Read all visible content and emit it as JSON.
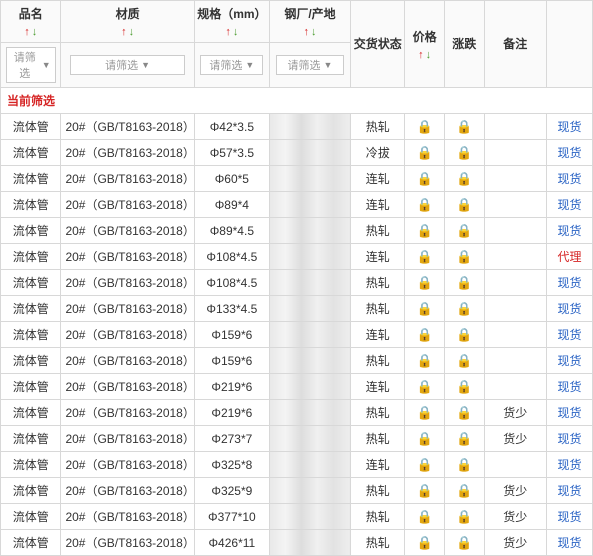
{
  "headers": {
    "name": "品名",
    "material": "材质",
    "spec": "规格（mm）",
    "origin": "钢厂/产地",
    "status": "交货状态",
    "price": "价格",
    "trend": "涨跌",
    "note": "备注",
    "remark": ""
  },
  "filter_placeholder": "请筛选",
  "current_filter_label": "当前筛选",
  "remark_default": "现货",
  "remark_agent": "代理",
  "note_less": "货少",
  "colors": {
    "up": "#d62626",
    "down": "#4b9c2f",
    "link": "#2a63c4",
    "border": "#d8d8d8"
  },
  "rows": [
    {
      "name": "流体管",
      "material": "20#（GB/T8163-2018）",
      "spec": "Φ42*3.5",
      "status": "热轧",
      "note": "",
      "remark": "现货",
      "remark_style": "link"
    },
    {
      "name": "流体管",
      "material": "20#（GB/T8163-2018）",
      "spec": "Φ57*3.5",
      "status": "冷拔",
      "note": "",
      "remark": "现货",
      "remark_style": "link"
    },
    {
      "name": "流体管",
      "material": "20#（GB/T8163-2018）",
      "spec": "Φ60*5",
      "status": "连轧",
      "note": "",
      "remark": "现货",
      "remark_style": "link"
    },
    {
      "name": "流体管",
      "material": "20#（GB/T8163-2018）",
      "spec": "Φ89*4",
      "status": "连轧",
      "note": "",
      "remark": "现货",
      "remark_style": "link"
    },
    {
      "name": "流体管",
      "material": "20#（GB/T8163-2018）",
      "spec": "Φ89*4.5",
      "status": "热轧",
      "note": "",
      "remark": "现货",
      "remark_style": "link"
    },
    {
      "name": "流体管",
      "material": "20#（GB/T8163-2018）",
      "spec": "Φ108*4.5",
      "status": "连轧",
      "note": "",
      "remark": "代理",
      "remark_style": "red"
    },
    {
      "name": "流体管",
      "material": "20#（GB/T8163-2018）",
      "spec": "Φ108*4.5",
      "status": "热轧",
      "note": "",
      "remark": "现货",
      "remark_style": "link"
    },
    {
      "name": "流体管",
      "material": "20#（GB/T8163-2018）",
      "spec": "Φ133*4.5",
      "status": "热轧",
      "note": "",
      "remark": "现货",
      "remark_style": "link"
    },
    {
      "name": "流体管",
      "material": "20#（GB/T8163-2018）",
      "spec": "Φ159*6",
      "status": "连轧",
      "note": "",
      "remark": "现货",
      "remark_style": "link"
    },
    {
      "name": "流体管",
      "material": "20#（GB/T8163-2018）",
      "spec": "Φ159*6",
      "status": "热轧",
      "note": "",
      "remark": "现货",
      "remark_style": "link"
    },
    {
      "name": "流体管",
      "material": "20#（GB/T8163-2018）",
      "spec": "Φ219*6",
      "status": "连轧",
      "note": "",
      "remark": "现货",
      "remark_style": "link"
    },
    {
      "name": "流体管",
      "material": "20#（GB/T8163-2018）",
      "spec": "Φ219*6",
      "status": "热轧",
      "note": "货少",
      "remark": "现货",
      "remark_style": "link"
    },
    {
      "name": "流体管",
      "material": "20#（GB/T8163-2018）",
      "spec": "Φ273*7",
      "status": "热轧",
      "note": "货少",
      "remark": "现货",
      "remark_style": "link"
    },
    {
      "name": "流体管",
      "material": "20#（GB/T8163-2018）",
      "spec": "Φ325*8",
      "status": "连轧",
      "note": "",
      "remark": "现货",
      "remark_style": "link"
    },
    {
      "name": "流体管",
      "material": "20#（GB/T8163-2018）",
      "spec": "Φ325*9",
      "status": "热轧",
      "note": "货少",
      "remark": "现货",
      "remark_style": "link"
    },
    {
      "name": "流体管",
      "material": "20#（GB/T8163-2018）",
      "spec": "Φ377*10",
      "status": "热轧",
      "note": "货少",
      "remark": "现货",
      "remark_style": "link"
    },
    {
      "name": "流体管",
      "material": "20#（GB/T8163-2018）",
      "spec": "Φ426*11",
      "status": "热轧",
      "note": "货少",
      "remark": "现货",
      "remark_style": "link"
    }
  ]
}
